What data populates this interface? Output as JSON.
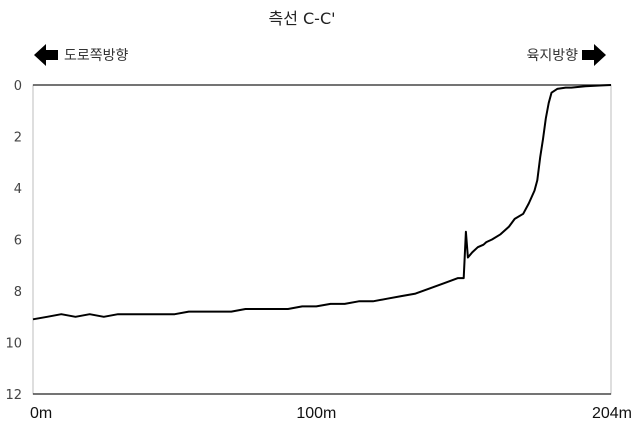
{
  "chart_data": {
    "type": "line",
    "title": "측선 C-C'",
    "direction_left": "도로쪽방향",
    "direction_right": "육지방향",
    "xlabel": "",
    "ylabel": "",
    "xlim": [
      0,
      204
    ],
    "ylim": [
      0,
      12
    ],
    "y_inverted": true,
    "x_ticks": [
      {
        "value": 0,
        "label": "0m"
      },
      {
        "value": 100,
        "label": "100m"
      },
      {
        "value": 204,
        "label": "204m"
      }
    ],
    "y_ticks": [
      {
        "value": 0,
        "label": "0"
      },
      {
        "value": 2,
        "label": "2"
      },
      {
        "value": 4,
        "label": "4"
      },
      {
        "value": 6,
        "label": "6"
      },
      {
        "value": 8,
        "label": "8"
      },
      {
        "value": 10,
        "label": "10"
      },
      {
        "value": 12,
        "label": "12"
      }
    ],
    "grid": false,
    "series": [
      {
        "color": "#000000",
        "x": [
          0,
          5,
          10,
          15,
          20,
          25,
          30,
          35,
          40,
          45,
          50,
          55,
          60,
          65,
          70,
          75,
          80,
          85,
          90,
          95,
          100,
          105,
          110,
          115,
          120,
          125,
          130,
          135,
          140,
          145,
          150,
          152,
          152.8,
          153.5,
          155,
          157,
          159,
          160,
          162,
          165,
          168,
          170,
          173,
          175,
          177,
          178,
          179,
          180,
          181,
          182,
          183,
          185,
          188,
          190,
          195,
          200,
          204
        ],
        "y": [
          9.1,
          9.0,
          8.9,
          9.0,
          8.9,
          9.0,
          8.9,
          8.9,
          8.9,
          8.9,
          8.9,
          8.8,
          8.8,
          8.8,
          8.8,
          8.7,
          8.7,
          8.7,
          8.7,
          8.6,
          8.6,
          8.5,
          8.5,
          8.4,
          8.4,
          8.3,
          8.2,
          8.1,
          7.9,
          7.7,
          7.5,
          7.5,
          5.7,
          6.7,
          6.5,
          6.3,
          6.2,
          6.1,
          6.0,
          5.8,
          5.5,
          5.2,
          5.0,
          4.6,
          4.1,
          3.7,
          2.8,
          2.1,
          1.3,
          0.7,
          0.3,
          0.15,
          0.1,
          0.1,
          0.05,
          0.02,
          0.0
        ]
      }
    ]
  }
}
